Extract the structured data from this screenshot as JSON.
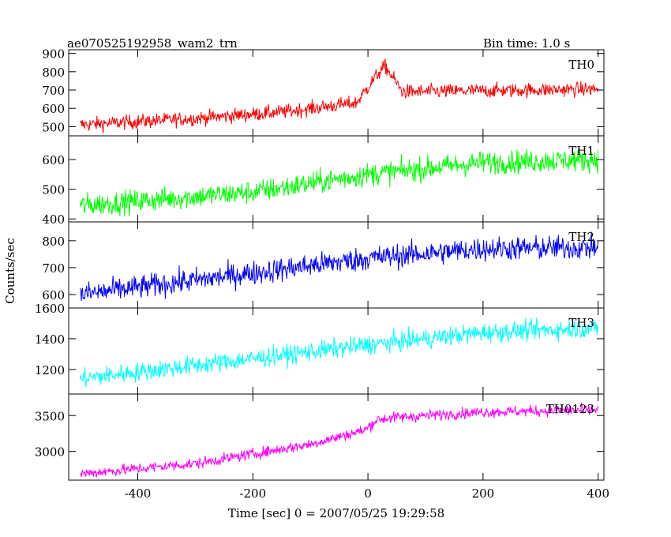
{
  "header": {
    "title": "ae070525192958_wam2_trn",
    "bin_time": "Bin time: 1.0 s"
  },
  "chart_data": {
    "type": "line",
    "xlabel": "Time [sec] 0 = 2007/05/25 19:29:58",
    "ylabel": "Counts/sec",
    "xlim": [
      -520,
      410
    ],
    "xticks": [
      -400,
      -200,
      0,
      200,
      400
    ],
    "x_start": -500,
    "x_end": 400,
    "x_step": 1,
    "panels": [
      {
        "name": "TH0",
        "color": "#ff0000",
        "ylim": [
          450,
          920
        ],
        "yticks": [
          500,
          600,
          700,
          800,
          900
        ],
        "profile": [
          [
            -500,
            510
          ],
          [
            -300,
            545
          ],
          [
            -150,
            580
          ],
          [
            -20,
            630
          ],
          [
            15,
            780
          ],
          [
            30,
            830
          ],
          [
            45,
            760
          ],
          [
            60,
            690
          ],
          [
            400,
            705
          ]
        ],
        "noise": 28
      },
      {
        "name": "TH1",
        "color": "#00ff00",
        "ylim": [
          390,
          680
        ],
        "yticks": [
          400,
          500,
          600
        ],
        "profile": [
          [
            -500,
            445
          ],
          [
            -200,
            490
          ],
          [
            0,
            550
          ],
          [
            200,
            590
          ],
          [
            400,
            600
          ]
        ],
        "noise": 28
      },
      {
        "name": "TH2",
        "color": "#0000ff",
        "ylim": [
          550,
          870
        ],
        "yticks": [
          600,
          700,
          800
        ],
        "profile": [
          [
            -500,
            600
          ],
          [
            -200,
            680
          ],
          [
            0,
            735
          ],
          [
            200,
            770
          ],
          [
            400,
            775
          ]
        ],
        "noise": 32
      },
      {
        "name": "TH3",
        "color": "#00ffff",
        "ylim": [
          1040,
          1600
        ],
        "yticks": [
          1200,
          1400,
          1600
        ],
        "profile": [
          [
            -500,
            1140
          ],
          [
            -200,
            1270
          ],
          [
            0,
            1360
          ],
          [
            200,
            1440
          ],
          [
            400,
            1470
          ]
        ],
        "noise": 45
      },
      {
        "name": "TH0123",
        "color": "#ff00ff",
        "ylim": [
          2600,
          3800
        ],
        "yticks": [
          3000,
          3500
        ],
        "profile": [
          [
            -500,
            2690
          ],
          [
            -300,
            2830
          ],
          [
            -100,
            3100
          ],
          [
            -5,
            3300
          ],
          [
            15,
            3440
          ],
          [
            40,
            3470
          ],
          [
            200,
            3550
          ],
          [
            400,
            3580
          ]
        ],
        "noise": 55
      }
    ]
  }
}
